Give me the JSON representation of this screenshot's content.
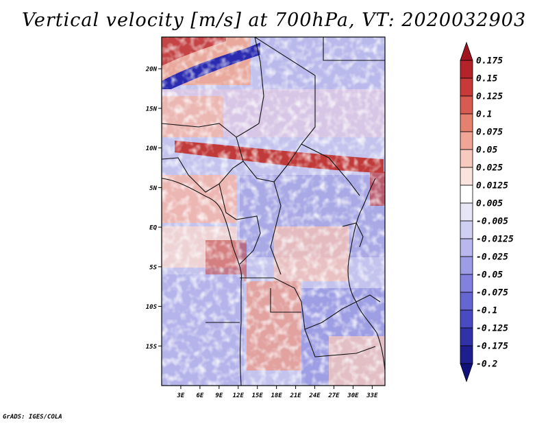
{
  "title": "Vertical velocity [m/s] at 700hPa, VT: 2020032903",
  "credit": "GrADS: IGES/COLA",
  "map": {
    "lon_range": [
      0,
      35
    ],
    "lat_range": [
      -20,
      24
    ],
    "lat_ticks": [
      {
        "value": 20,
        "label": "20N"
      },
      {
        "value": 15,
        "label": "15N"
      },
      {
        "value": 10,
        "label": "10N"
      },
      {
        "value": 5,
        "label": "5N"
      },
      {
        "value": 0,
        "label": "EQ"
      },
      {
        "value": -5,
        "label": "5S"
      },
      {
        "value": -10,
        "label": "10S"
      },
      {
        "value": -15,
        "label": "15S"
      }
    ],
    "lon_ticks": [
      {
        "value": 3,
        "label": "3E"
      },
      {
        "value": 6,
        "label": "6E"
      },
      {
        "value": 9,
        "label": "9E"
      },
      {
        "value": 12,
        "label": "12E"
      },
      {
        "value": 15,
        "label": "15E"
      },
      {
        "value": 18,
        "label": "18E"
      },
      {
        "value": 21,
        "label": "21E"
      },
      {
        "value": 24,
        "label": "24E"
      },
      {
        "value": 27,
        "label": "27E"
      },
      {
        "value": 30,
        "label": "30E"
      },
      {
        "value": 33,
        "label": "33E"
      }
    ]
  },
  "colorbar": {
    "levels": [
      "0.175",
      "0.15",
      "0.125",
      "0.1",
      "0.075",
      "0.05",
      "0.025",
      "0.0125",
      "0.005",
      "-0.005",
      "-0.0125",
      "-0.025",
      "-0.05",
      "-0.075",
      "-0.1",
      "-0.125",
      "-0.175",
      "-0.2"
    ],
    "colors": [
      "#a0141e",
      "#b4232a",
      "#c83a37",
      "#d85b52",
      "#e6806f",
      "#f0a596",
      "#f7c9bf",
      "#fce4de",
      "#ffffff",
      "#e6e6f7",
      "#cfcff3",
      "#b8b8ee",
      "#9d9de6",
      "#8282de",
      "#6666d2",
      "#4a4ac2",
      "#3232a8",
      "#1e1e8e",
      "#10107a"
    ]
  },
  "chart_data": {
    "type": "heatmap",
    "title": "Vertical velocity [m/s] at 700hPa, VT: 2020032903",
    "variable": "Vertical velocity",
    "units": "m/s",
    "level": "700hPa",
    "valid_time": "2020032903",
    "x_axis": {
      "range": [
        0,
        35
      ],
      "ticks": [
        "3E",
        "6E",
        "9E",
        "12E",
        "15E",
        "18E",
        "21E",
        "24E",
        "27E",
        "30E",
        "33E"
      ]
    },
    "y_axis": {
      "range": [
        -20,
        24
      ],
      "ticks": [
        "20N",
        "15N",
        "10N",
        "5N",
        "EQ",
        "5S",
        "10S",
        "15S"
      ]
    },
    "colorbar_levels": [
      0.175,
      0.15,
      0.125,
      0.1,
      0.075,
      0.05,
      0.025,
      0.0125,
      0.005,
      -0.005,
      -0.0125,
      -0.025,
      -0.05,
      -0.075,
      -0.1,
      -0.125,
      -0.175,
      -0.2
    ],
    "legend_position": "right"
  }
}
